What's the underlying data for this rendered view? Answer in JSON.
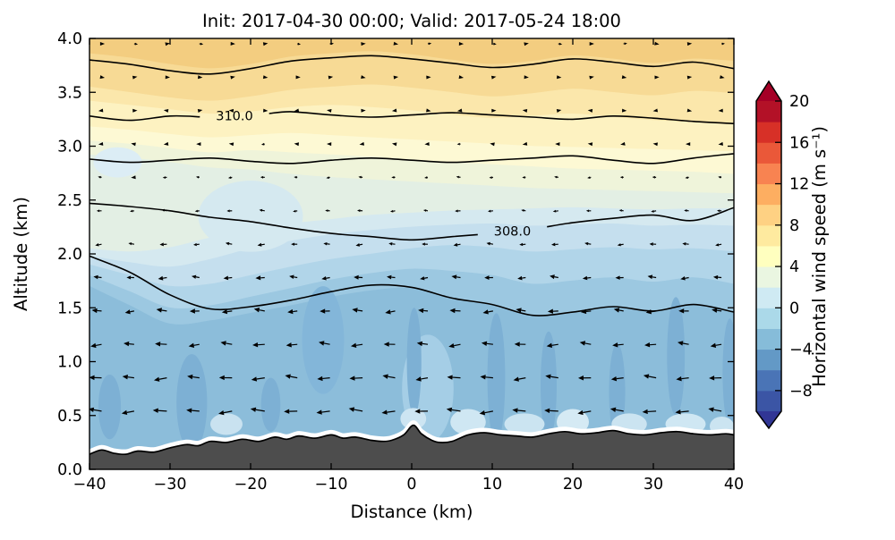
{
  "title": "Init: 2017-04-30 00:00; Valid: 2017-05-24 18:00",
  "axes": {
    "xlabel": "Distance (km)",
    "ylabel": "Altitude (km)",
    "x_ticks": [
      {
        "value": -40,
        "label": "−40"
      },
      {
        "value": -30,
        "label": "−30"
      },
      {
        "value": -20,
        "label": "−20"
      },
      {
        "value": -10,
        "label": "−10"
      },
      {
        "value": 0,
        "label": "0"
      },
      {
        "value": 10,
        "label": "10"
      },
      {
        "value": 20,
        "label": "20"
      },
      {
        "value": 30,
        "label": "30"
      },
      {
        "value": 40,
        "label": "40"
      }
    ],
    "y_ticks": [
      {
        "value": 0.0,
        "label": "0.0"
      },
      {
        "value": 0.5,
        "label": "0.5"
      },
      {
        "value": 1.0,
        "label": "1.0"
      },
      {
        "value": 1.5,
        "label": "1.5"
      },
      {
        "value": 2.0,
        "label": "2.0"
      },
      {
        "value": 2.5,
        "label": "2.5"
      },
      {
        "value": 3.0,
        "label": "3.0"
      },
      {
        "value": 3.5,
        "label": "3.5"
      },
      {
        "value": 4.0,
        "label": "4.0"
      }
    ]
  },
  "colorbar": {
    "label": "Horizontal wind speed (m s⁻¹)",
    "range": [
      -10,
      20
    ],
    "levels_step": 2,
    "ticks": [
      {
        "value": 20,
        "label": "20"
      },
      {
        "value": 16,
        "label": "16"
      },
      {
        "value": 12,
        "label": "12"
      },
      {
        "value": 8,
        "label": "8"
      },
      {
        "value": 4,
        "label": "4"
      },
      {
        "value": 0,
        "label": "0"
      },
      {
        "value": -4,
        "label": "−4"
      },
      {
        "value": -8,
        "label": "−8"
      }
    ],
    "segment_colors_bottom_to_top": [
      "#3b55a5",
      "#4a74b6",
      "#6399c6",
      "#86bcd9",
      "#abd9e9",
      "#cfeaf3",
      "#eaf6e1",
      "#ffffbf",
      "#feea9f",
      "#fed183",
      "#fdae61",
      "#f88351",
      "#ea5839",
      "#d73027",
      "#b31127"
    ],
    "under_arrow_color": "#313695",
    "over_arrow_color": "#a50026"
  },
  "chart_data": {
    "type": "filled_contour_cross_section",
    "title": "Init: 2017-04-30 00:00; Valid: 2017-05-24 18:00",
    "xlabel": "Distance (km)",
    "ylabel": "Altitude (km)",
    "x_range_km": [
      -40,
      40
    ],
    "altitude_range_km": [
      0.0,
      4.0
    ],
    "grid": false,
    "speed_field_summary": {
      "x_km": [
        -40,
        -30,
        -20,
        -10,
        0,
        10,
        20,
        30,
        40
      ],
      "alt_km": [
        0.5,
        1.0,
        1.5,
        2.0,
        2.5,
        3.0,
        3.5,
        4.0
      ],
      "speed_ms": [
        [
          -7,
          -6,
          -5,
          -5,
          -4,
          -6,
          -5,
          -4,
          -5
        ],
        [
          -6,
          -6,
          -5,
          -4,
          -4,
          -5,
          -4,
          -4,
          -4
        ],
        [
          -5,
          -5,
          -4,
          -3,
          -3,
          -3,
          -3,
          -3,
          -3
        ],
        [
          -3,
          -4,
          -2,
          -2,
          -2,
          -2,
          -2,
          -2,
          -2
        ],
        [
          -1,
          -1,
          -1,
          0,
          0,
          0,
          0,
          0,
          0
        ],
        [
          2,
          2,
          3,
          3,
          3,
          3,
          3,
          3,
          3
        ],
        [
          6,
          6,
          6,
          7,
          7,
          7,
          7,
          7,
          7
        ],
        [
          10,
          10,
          10,
          10,
          10,
          10,
          10,
          10,
          10
        ]
      ]
    },
    "band_x_stations_km": [
      -40,
      -35,
      -30,
      -25,
      -20,
      -15,
      -10,
      -5,
      0,
      5,
      10,
      15,
      20,
      25,
      30,
      35,
      40
    ],
    "band_colors_top_to_bottom": [
      "#f3cd80",
      "#f7da95",
      "#fbe7ab",
      "#fdf2c1",
      "#fdf9d4",
      "#eff4da",
      "#e3efe4",
      "#d5e9f0",
      "#c5dfee",
      "#b1d5e9",
      "#9cc8e1",
      "#8cbdda"
    ],
    "band_boundaries_alt_km": [
      [
        3.86,
        3.82,
        3.76,
        3.72,
        3.76,
        3.83,
        3.86,
        3.88,
        3.85,
        3.8,
        3.76,
        3.79,
        3.84,
        3.81,
        3.77,
        3.81,
        3.79
      ],
      [
        3.55,
        3.5,
        3.45,
        3.42,
        3.46,
        3.52,
        3.55,
        3.57,
        3.54,
        3.5,
        3.46,
        3.49,
        3.53,
        3.5,
        3.47,
        3.51,
        3.49
      ],
      [
        3.42,
        3.38,
        3.34,
        3.3,
        3.32,
        3.36,
        3.38,
        3.36,
        3.33,
        3.29,
        3.26,
        3.28,
        3.3,
        3.27,
        3.24,
        3.22,
        3.2
      ],
      [
        3.18,
        3.15,
        3.11,
        3.08,
        3.1,
        3.12,
        3.1,
        3.08,
        3.06,
        3.04,
        3.02,
        3.0,
        2.99,
        2.98,
        2.97,
        2.96,
        2.95
      ],
      [
        3.05,
        3.02,
        2.98,
        2.94,
        2.96,
        2.94,
        2.92,
        2.9,
        2.87,
        2.85,
        2.83,
        2.81,
        2.79,
        2.78,
        2.77,
        2.76,
        2.74
      ],
      [
        2.92,
        2.89,
        2.85,
        2.8,
        2.78,
        2.74,
        2.71,
        2.69,
        2.67,
        2.65,
        2.63,
        2.61,
        2.6,
        2.59,
        2.58,
        2.57,
        2.56
      ],
      [
        2.05,
        2.02,
        2.06,
        2.15,
        2.22,
        2.28,
        2.32,
        2.36,
        2.38,
        2.4,
        2.41,
        2.42,
        2.43,
        2.42,
        2.41,
        2.42,
        2.42
      ],
      [
        1.98,
        1.92,
        1.88,
        1.95,
        2.05,
        2.12,
        2.18,
        2.22,
        2.25,
        2.27,
        2.28,
        2.26,
        2.27,
        2.28,
        2.26,
        2.27,
        2.26
      ],
      [
        1.9,
        1.8,
        1.7,
        1.72,
        1.8,
        1.88,
        1.95,
        2.0,
        2.05,
        2.08,
        2.06,
        2.02,
        2.04,
        2.06,
        2.04,
        2.05,
        2.02
      ],
      [
        1.8,
        1.65,
        1.5,
        1.52,
        1.6,
        1.68,
        1.76,
        1.82,
        1.86,
        1.84,
        1.8,
        1.72,
        1.75,
        1.78,
        1.74,
        1.78,
        1.72
      ],
      [
        1.7,
        1.52,
        1.35,
        1.38,
        1.45,
        1.52,
        1.6,
        1.66,
        1.68,
        1.58,
        1.52,
        1.42,
        1.45,
        1.5,
        1.46,
        1.52,
        1.45
      ]
    ],
    "speed_patches": [
      {
        "x_km": -20.0,
        "alt_km": 2.35,
        "rx_km": 6.5,
        "ry_km": 0.33,
        "color": "#d5e9f0"
      },
      {
        "x_km": -36.5,
        "alt_km": 2.85,
        "rx_km": 3.0,
        "ry_km": 0.14,
        "color": "#dcedf5"
      },
      {
        "x_km": 2.0,
        "alt_km": 0.75,
        "rx_km": 3.2,
        "ry_km": 0.5,
        "color": "#a5cee6"
      },
      {
        "x_km": -11.0,
        "alt_km": 1.2,
        "rx_km": 2.6,
        "ry_km": 0.5,
        "color": "#83b6d9"
      },
      {
        "x_km": -37.5,
        "alt_km": 0.58,
        "rx_km": 1.4,
        "ry_km": 0.3,
        "color": "#7db0d4"
      },
      {
        "x_km": -27.3,
        "alt_km": 0.62,
        "rx_km": 1.9,
        "ry_km": 0.45,
        "color": "#7db0d4"
      },
      {
        "x_km": -17.5,
        "alt_km": 0.6,
        "rx_km": 1.2,
        "ry_km": 0.25,
        "color": "#7db0d4"
      },
      {
        "x_km": 0.3,
        "alt_km": 1.0,
        "rx_km": 0.9,
        "ry_km": 0.5,
        "color": "#7db0d4"
      },
      {
        "x_km": 10.5,
        "alt_km": 0.85,
        "rx_km": 1.1,
        "ry_km": 0.6,
        "color": "#7db0d4"
      },
      {
        "x_km": 17.0,
        "alt_km": 0.78,
        "rx_km": 1.0,
        "ry_km": 0.5,
        "color": "#7db0d4"
      },
      {
        "x_km": 25.5,
        "alt_km": 0.72,
        "rx_km": 1.0,
        "ry_km": 0.45,
        "color": "#7db0d4"
      },
      {
        "x_km": 32.8,
        "alt_km": 1.05,
        "rx_km": 1.1,
        "ry_km": 0.55,
        "color": "#7db0d4"
      },
      {
        "x_km": 39.5,
        "alt_km": 0.9,
        "rx_km": 0.9,
        "ry_km": 0.5,
        "color": "#7db0d4"
      },
      {
        "x_km": -23.0,
        "alt_km": 0.42,
        "rx_km": 2.0,
        "ry_km": 0.1,
        "color": "#c9e2f0"
      },
      {
        "x_km": 0.2,
        "alt_km": 0.47,
        "rx_km": 1.6,
        "ry_km": 0.1,
        "color": "#cde5f2"
      },
      {
        "x_km": 7.0,
        "alt_km": 0.44,
        "rx_km": 2.2,
        "ry_km": 0.12,
        "color": "#cfe7f3"
      },
      {
        "x_km": 14.0,
        "alt_km": 0.42,
        "rx_km": 2.5,
        "ry_km": 0.1,
        "color": "#cbe4f1"
      },
      {
        "x_km": 20.0,
        "alt_km": 0.44,
        "rx_km": 2.0,
        "ry_km": 0.12,
        "color": "#d5eaf4"
      },
      {
        "x_km": 27.0,
        "alt_km": 0.42,
        "rx_km": 2.2,
        "ry_km": 0.1,
        "color": "#cbe4f1"
      },
      {
        "x_km": 34.0,
        "alt_km": 0.42,
        "rx_km": 2.5,
        "ry_km": 0.1,
        "color": "#cfe7f3"
      },
      {
        "x_km": 38.5,
        "alt_km": 0.4,
        "rx_km": 1.5,
        "ry_km": 0.09,
        "color": "#cbe4f1"
      }
    ],
    "theta_contours": [
      {
        "label": null,
        "alt_km": [
          3.8,
          3.76,
          3.7,
          3.67,
          3.72,
          3.79,
          3.82,
          3.84,
          3.81,
          3.77,
          3.73,
          3.76,
          3.81,
          3.78,
          3.74,
          3.78,
          3.72
        ]
      },
      {
        "label": "310.0",
        "label_x_km": -22.0,
        "alt_km": [
          3.28,
          3.24,
          3.28,
          3.27,
          3.29,
          3.32,
          3.29,
          3.27,
          3.29,
          3.31,
          3.29,
          3.27,
          3.25,
          3.28,
          3.26,
          3.23,
          3.21
        ]
      },
      {
        "label": null,
        "alt_km": [
          2.88,
          2.85,
          2.87,
          2.89,
          2.86,
          2.84,
          2.87,
          2.89,
          2.87,
          2.85,
          2.87,
          2.89,
          2.91,
          2.87,
          2.84,
          2.89,
          2.93
        ]
      },
      {
        "label": "308.0",
        "label_x_km": 12.5,
        "alt_km": [
          2.47,
          2.44,
          2.4,
          2.34,
          2.3,
          2.24,
          2.19,
          2.16,
          2.13,
          2.16,
          2.19,
          2.23,
          2.29,
          2.33,
          2.36,
          2.31,
          2.43
        ]
      },
      {
        "label": null,
        "alt_km": [
          1.98,
          1.83,
          1.62,
          1.49,
          1.51,
          1.57,
          1.65,
          1.71,
          1.69,
          1.59,
          1.53,
          1.43,
          1.46,
          1.51,
          1.47,
          1.53,
          1.46
        ]
      }
    ],
    "terrain_color": "#4d4d4d",
    "terrain_profile": [
      [
        -40,
        0.14
      ],
      [
        -38.5,
        0.18
      ],
      [
        -37,
        0.15
      ],
      [
        -35.5,
        0.14
      ],
      [
        -34,
        0.17
      ],
      [
        -32,
        0.16
      ],
      [
        -30,
        0.2
      ],
      [
        -28,
        0.23
      ],
      [
        -26.5,
        0.22
      ],
      [
        -25,
        0.26
      ],
      [
        -23,
        0.25
      ],
      [
        -21,
        0.28
      ],
      [
        -19,
        0.26
      ],
      [
        -17,
        0.3
      ],
      [
        -15.5,
        0.28
      ],
      [
        -14,
        0.31
      ],
      [
        -12,
        0.29
      ],
      [
        -10,
        0.32
      ],
      [
        -8.5,
        0.29
      ],
      [
        -7,
        0.3
      ],
      [
        -5,
        0.27
      ],
      [
        -3.5,
        0.26
      ],
      [
        -2.5,
        0.27
      ],
      [
        -1,
        0.32
      ],
      [
        0.2,
        0.41
      ],
      [
        1.2,
        0.33
      ],
      [
        2.5,
        0.27
      ],
      [
        3.5,
        0.25
      ],
      [
        5,
        0.26
      ],
      [
        7,
        0.32
      ],
      [
        9,
        0.34
      ],
      [
        11,
        0.32
      ],
      [
        13,
        0.31
      ],
      [
        15,
        0.3
      ],
      [
        17,
        0.33
      ],
      [
        19,
        0.35
      ],
      [
        21,
        0.33
      ],
      [
        23,
        0.34
      ],
      [
        25,
        0.36
      ],
      [
        27,
        0.33
      ],
      [
        29,
        0.32
      ],
      [
        31,
        0.34
      ],
      [
        33,
        0.35
      ],
      [
        35,
        0.33
      ],
      [
        37,
        0.32
      ],
      [
        39,
        0.33
      ],
      [
        40,
        0.32
      ]
    ],
    "quiver": {
      "x_start_km": -38.5,
      "x_step_km": 4.05,
      "alt_rows_km": [
        3.95,
        3.64,
        3.33,
        3.02,
        2.71,
        2.4,
        2.09,
        1.78,
        1.47,
        1.16,
        0.85,
        0.54,
        0.23
      ],
      "u_ms": [
        [
          0.5,
          0.7,
          0.4,
          0.8,
          0.5,
          0.3,
          0.6,
          0.8,
          0.4,
          0.5,
          0.7,
          0.3,
          0.6,
          0.5,
          0.8,
          0.4,
          0.7,
          0.5,
          0.3,
          0.6
        ],
        [
          0.3,
          0.5,
          0.2,
          0.4,
          0.3,
          0.2,
          0.4,
          0.5,
          0.2,
          0.3,
          0.4,
          0.2,
          0.3,
          0.2,
          0.5,
          0.3,
          0.4,
          0.2,
          0.3,
          0.4
        ],
        [
          -0.2,
          0.2,
          -0.3,
          0.2,
          -0.2,
          0.3,
          -0.2,
          -0.3,
          0.2,
          -0.2,
          0.3,
          -0.3,
          0.2,
          -0.2,
          0.3,
          -0.2,
          0.2,
          -0.3,
          0.2,
          -0.2
        ],
        [
          -0.4,
          -0.3,
          -0.5,
          -0.3,
          -0.4,
          -0.6,
          -0.3,
          -0.4,
          -0.5,
          -0.4,
          -0.3,
          -0.6,
          -0.4,
          -0.3,
          -0.5,
          -0.4,
          -0.3,
          -0.5,
          -0.4,
          -0.3
        ],
        [
          -0.7,
          -0.5,
          -0.9,
          -0.6,
          -0.8,
          -1.0,
          -0.6,
          -0.7,
          -0.9,
          -0.7,
          -0.6,
          -1.0,
          -0.8,
          -0.6,
          -0.9,
          -0.7,
          -0.6,
          -0.8,
          -0.7,
          -0.6
        ],
        [
          -1.3,
          -1.0,
          -1.5,
          -1.1,
          -1.4,
          -1.6,
          -1.1,
          -1.2,
          -1.5,
          -1.3,
          -1.1,
          -1.6,
          -1.4,
          -1.1,
          -1.5,
          -1.2,
          -1.1,
          -1.4,
          -1.2,
          -1.1
        ],
        [
          -2.0,
          -1.7,
          -2.3,
          -1.8,
          -2.1,
          -2.4,
          -1.9,
          -2.0,
          -2.2,
          -2.0,
          -1.8,
          -2.3,
          -2.1,
          -1.9,
          -2.2,
          -2.0,
          -1.9,
          -2.1,
          -2.0,
          -1.9
        ],
        [
          -2.8,
          -2.5,
          -3.1,
          -2.7,
          -3.0,
          -3.3,
          -2.8,
          -2.9,
          -3.1,
          -2.9,
          -2.7,
          -3.2,
          -3.0,
          -2.8,
          -3.1,
          -2.9,
          -2.8,
          -3.0,
          -2.9,
          -2.8
        ],
        [
          -3.6,
          -3.3,
          -3.9,
          -3.5,
          -3.8,
          -4.1,
          -3.6,
          -3.7,
          -3.9,
          -3.7,
          -3.5,
          -4.0,
          -3.8,
          -3.6,
          -3.9,
          -3.7,
          -3.6,
          -3.8,
          -3.7,
          -3.6
        ],
        [
          -4.2,
          -3.9,
          -4.5,
          -4.1,
          -4.4,
          -4.7,
          -4.2,
          -4.3,
          -4.5,
          -4.3,
          -4.1,
          -4.6,
          -4.4,
          -4.2,
          -4.5,
          -4.3,
          -4.2,
          -4.4,
          -4.3,
          -4.2
        ],
        [
          -4.8,
          -4.5,
          -5.1,
          -4.7,
          -5.0,
          -5.3,
          -4.8,
          -4.9,
          -5.1,
          -4.9,
          -4.7,
          -5.2,
          -5.0,
          -4.8,
          -5.1,
          -4.9,
          -4.8,
          -5.0,
          -4.9,
          -4.8
        ],
        [
          -5.2,
          -4.9,
          -5.5,
          -5.1,
          -5.4,
          -5.7,
          -5.2,
          -5.3,
          -5.5,
          -5.3,
          -5.1,
          -5.6,
          -5.4,
          -5.2,
          -5.5,
          -5.3,
          -5.2,
          -5.4,
          -5.3,
          -5.2
        ],
        [
          -4.5,
          -4.2,
          -4.8,
          -4.4,
          -4.7,
          -5.0,
          -4.5,
          -4.6,
          -4.8,
          -4.6,
          -4.4,
          -4.9,
          -4.7,
          -4.5,
          -4.8,
          -4.6,
          -4.5,
          -4.7,
          -4.6,
          -4.5
        ]
      ]
    }
  }
}
